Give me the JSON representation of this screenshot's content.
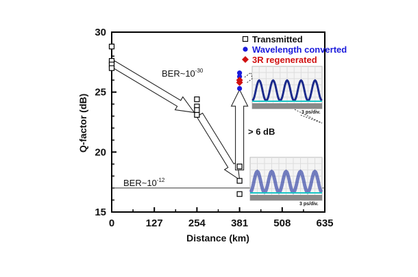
{
  "chart_data": {
    "type": "scatter",
    "title": "",
    "xlabel": "Distance (km)",
    "ylabel": "Q-factor (dB)",
    "xlim": [
      0,
      635
    ],
    "ylim": [
      15,
      30
    ],
    "xticks": [
      "0",
      "127",
      "254",
      "381",
      "508",
      "635"
    ],
    "yticks": [
      "15",
      "20",
      "25",
      "30"
    ],
    "grid": false,
    "legend_position": "top-right",
    "series": [
      {
        "name": "Transmitted",
        "marker": "open-square",
        "color": "#000000",
        "points": [
          [
            0,
            28.8
          ],
          [
            0,
            27.6
          ],
          [
            0,
            27.3
          ],
          [
            0,
            27.0
          ],
          [
            254,
            24.4
          ],
          [
            254,
            23.8
          ],
          [
            254,
            23.5
          ],
          [
            254,
            23.1
          ],
          [
            381,
            18.8
          ],
          [
            381,
            17.6
          ],
          [
            381,
            16.5
          ]
        ]
      },
      {
        "name": "Wavelength converted",
        "marker": "circle",
        "color": "#1a1adb",
        "points": [
          [
            381,
            26.6
          ],
          [
            381,
            26.3
          ],
          [
            381,
            25.9
          ],
          [
            381,
            25.3
          ]
        ]
      },
      {
        "name": "3R regenerated",
        "marker": "diamond",
        "color": "#d01010",
        "points": [
          [
            381,
            26.0
          ],
          [
            381,
            25.8
          ]
        ]
      }
    ],
    "reference_line": {
      "y": 17,
      "label_base": "BER~10",
      "label_exp": "-12"
    },
    "annotations": {
      "ber30_base": "BER~10",
      "ber30_exp": "-30",
      "gain": "> 6 dB",
      "eye_scale_top": "3 ps/div.",
      "eye_scale_bottom": "3 ps/div."
    }
  }
}
